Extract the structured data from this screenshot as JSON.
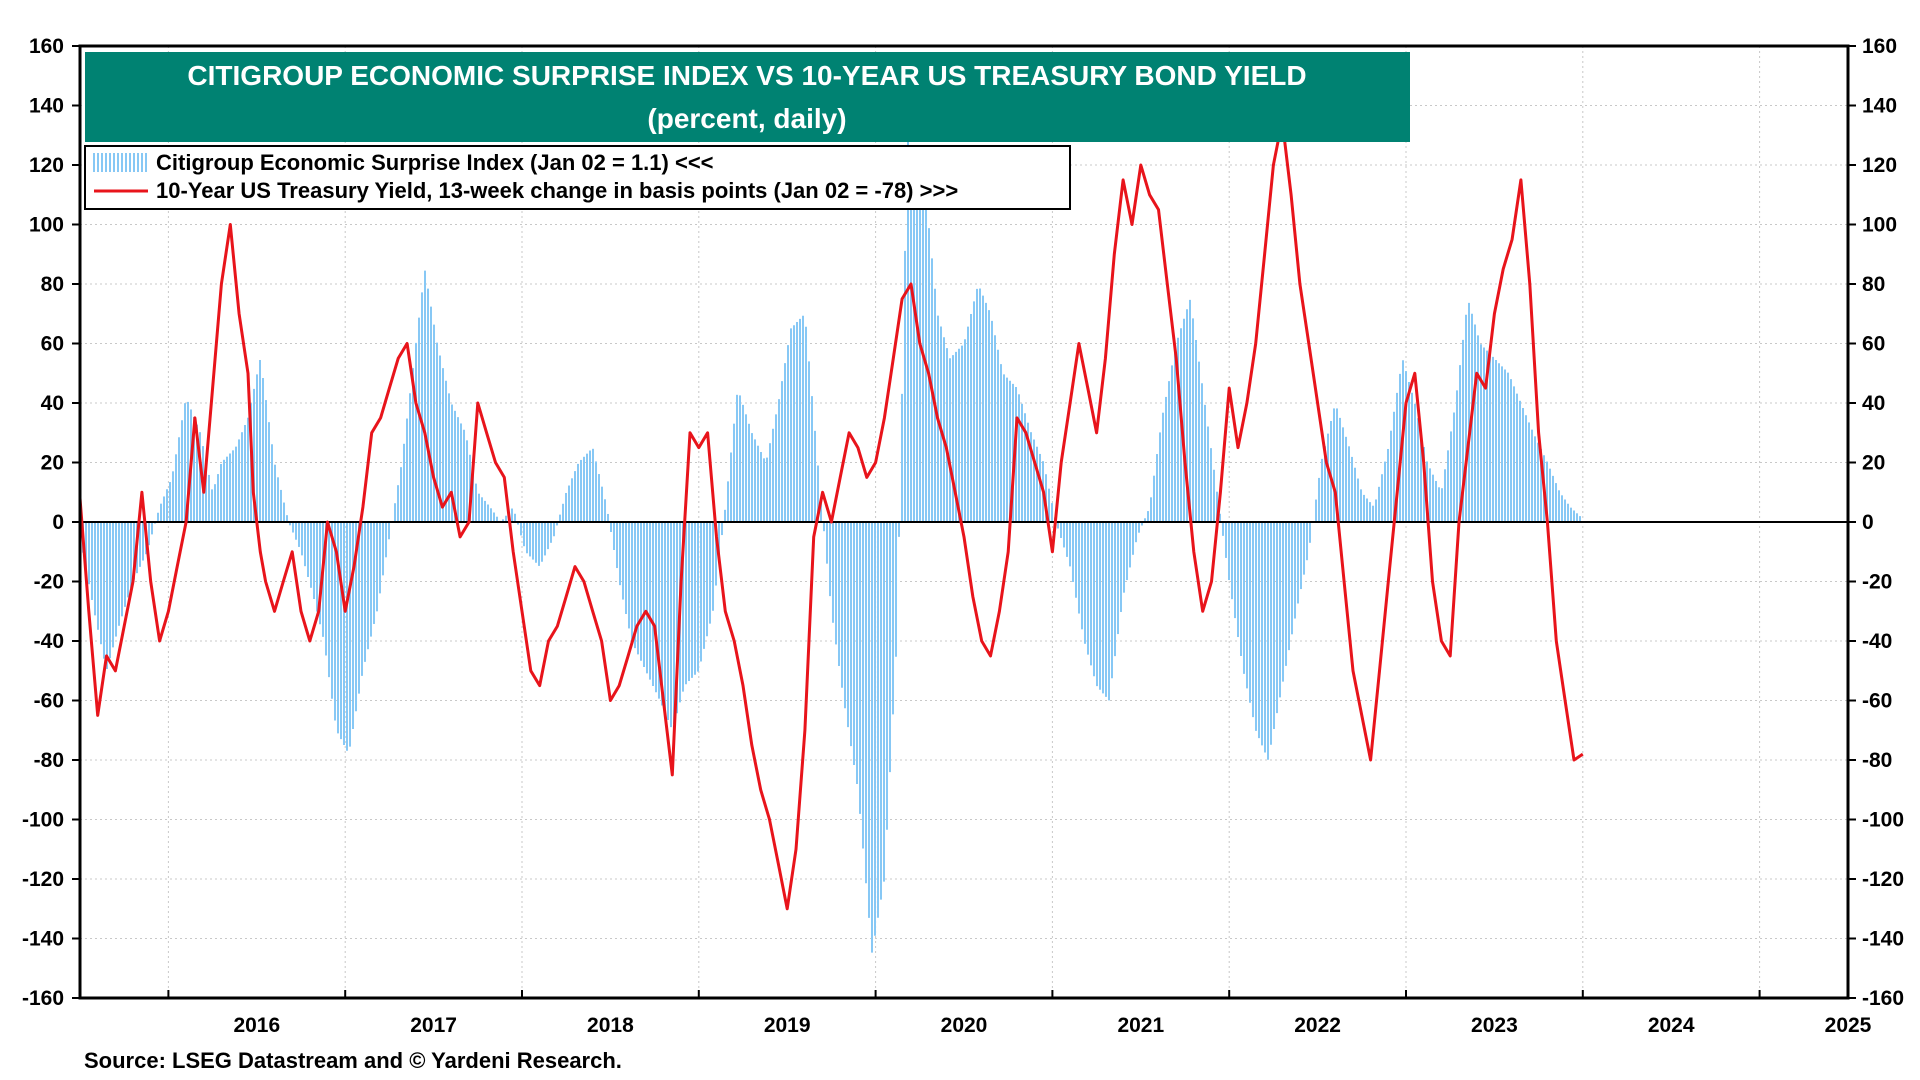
{
  "colors": {
    "title_bg": "#008272",
    "title_text": "#ffffff",
    "surprise_fill": "#87c8f5",
    "yield_line": "#e8141b",
    "grid": "#c8c8c8",
    "axis": "#000000"
  },
  "source": "Source: LSEG Datastream and © Yardeni Research.",
  "chart_data": {
    "type": "bar+line",
    "title": "CITIGROUP ECONOMIC SURPRISE INDEX VS 10-YEAR US TREASURY BOND YIELD",
    "subtitle": "(percent, daily)",
    "ylim": [
      -160,
      160
    ],
    "y_ticks": [
      160,
      140,
      120,
      100,
      80,
      60,
      40,
      20,
      0,
      -20,
      -40,
      -60,
      -80,
      -100,
      -120,
      -140,
      -160
    ],
    "y_tick_labels": [
      "160",
      "140",
      "120",
      "100",
      "80",
      "60",
      "40",
      "20",
      "0",
      "-20",
      "-40",
      "-60",
      "-80",
      "-100",
      "-120",
      "-140",
      "-160"
    ],
    "x_range": [
      2015.5,
      2025.5
    ],
    "x_labels": [
      "2016",
      "2017",
      "2018",
      "2019",
      "2020",
      "2021",
      "2022",
      "2023",
      "2024",
      "2025"
    ],
    "grid": true,
    "legend_position": "top-left",
    "legend": [
      {
        "label": "Citigroup Economic Surprise Index (Jan 02 = 1.1) <<<",
        "style": "bars"
      },
      {
        "label": "10-Year US Treasury Yield, 13-week change in basis points (Jan 02 = -78) >>>",
        "style": "line"
      }
    ],
    "series": [
      {
        "name": "Citigroup Economic Surprise Index",
        "type": "bar",
        "axis": "left",
        "x": [
          2015.5,
          2015.58,
          2015.65,
          2015.72,
          2015.8,
          2015.88,
          2015.95,
          2016.02,
          2016.1,
          2016.18,
          2016.25,
          2016.3,
          2016.38,
          2016.45,
          2016.52,
          2016.6,
          2016.68,
          2016.75,
          2016.82,
          2016.88,
          2016.95,
          2017.02,
          2017.1,
          2017.18,
          2017.25,
          2017.32,
          2017.38,
          2017.45,
          2017.52,
          2017.6,
          2017.68,
          2017.75,
          2017.82,
          2017.88,
          2017.95,
          2018.02,
          2018.1,
          2018.18,
          2018.25,
          2018.32,
          2018.4,
          2018.48,
          2018.55,
          2018.62,
          2018.7,
          2018.78,
          2018.85,
          2018.92,
          2019.0,
          2019.08,
          2019.15,
          2019.22,
          2019.3,
          2019.38,
          2019.45,
          2019.52,
          2019.6,
          2019.68,
          2019.75,
          2019.82,
          2019.9,
          2019.98,
          2020.05,
          2020.12,
          2020.18,
          2020.22,
          2020.27,
          2020.3,
          2020.35,
          2020.42,
          2020.5,
          2020.58,
          2020.65,
          2020.72,
          2020.8,
          2020.88,
          2020.95,
          2021.02,
          2021.1,
          2021.18,
          2021.25,
          2021.32,
          2021.4,
          2021.48,
          2021.55,
          2021.62,
          2021.7,
          2021.78,
          2021.85,
          2021.92,
          2022.0,
          2022.08,
          2022.15,
          2022.22,
          2022.3,
          2022.38,
          2022.45,
          2022.52,
          2022.6,
          2022.68,
          2022.75,
          2022.82,
          2022.9,
          2022.98,
          2023.05,
          2023.12,
          2023.2,
          2023.28,
          2023.35,
          2023.42,
          2023.5,
          2023.58,
          2023.65,
          2023.72,
          2023.8,
          2023.87,
          2023.93,
          2024.0
        ],
        "values": [
          -5,
          -30,
          -50,
          -35,
          -20,
          -10,
          5,
          15,
          42,
          30,
          10,
          20,
          25,
          35,
          55,
          20,
          0,
          -10,
          -25,
          -40,
          -70,
          -78,
          -50,
          -30,
          -5,
          20,
          50,
          85,
          60,
          40,
          30,
          10,
          5,
          0,
          5,
          -10,
          -15,
          -5,
          10,
          20,
          25,
          5,
          -20,
          -40,
          -50,
          -60,
          -70,
          -55,
          -50,
          -30,
          5,
          45,
          30,
          20,
          40,
          65,
          70,
          15,
          -30,
          -60,
          -90,
          -145,
          -120,
          -40,
          130,
          120,
          125,
          100,
          70,
          55,
          60,
          80,
          70,
          50,
          45,
          30,
          20,
          0,
          -15,
          -40,
          -55,
          -60,
          -25,
          -5,
          5,
          35,
          60,
          75,
          45,
          15,
          -20,
          -50,
          -70,
          -80,
          -55,
          -30,
          -10,
          20,
          40,
          25,
          10,
          5,
          25,
          55,
          40,
          20,
          10,
          40,
          75,
          60,
          55,
          50,
          40,
          30,
          20,
          10,
          5,
          1.1
        ]
      },
      {
        "name": "10-Year US Treasury Yield, 13-week change in basis points",
        "type": "line",
        "axis": "right",
        "x": [
          2015.5,
          2015.55,
          2015.6,
          2015.65,
          2015.7,
          2015.75,
          2015.8,
          2015.85,
          2015.9,
          2015.95,
          2016.0,
          2016.05,
          2016.1,
          2016.15,
          2016.2,
          2016.25,
          2016.3,
          2016.35,
          2016.4,
          2016.45,
          2016.48,
          2016.52,
          2016.55,
          2016.6,
          2016.65,
          2016.7,
          2016.75,
          2016.8,
          2016.85,
          2016.9,
          2016.95,
          2017.0,
          2017.05,
          2017.1,
          2017.15,
          2017.2,
          2017.25,
          2017.3,
          2017.35,
          2017.4,
          2017.45,
          2017.5,
          2017.55,
          2017.6,
          2017.65,
          2017.7,
          2017.75,
          2017.8,
          2017.85,
          2017.9,
          2017.95,
          2018.0,
          2018.05,
          2018.1,
          2018.15,
          2018.2,
          2018.25,
          2018.3,
          2018.35,
          2018.4,
          2018.45,
          2018.5,
          2018.55,
          2018.6,
          2018.65,
          2018.7,
          2018.75,
          2018.8,
          2018.85,
          2018.9,
          2018.95,
          2019.0,
          2019.05,
          2019.1,
          2019.15,
          2019.2,
          2019.25,
          2019.3,
          2019.35,
          2019.4,
          2019.45,
          2019.5,
          2019.55,
          2019.6,
          2019.65,
          2019.7,
          2019.75,
          2019.8,
          2019.85,
          2019.9,
          2019.95,
          2020.0,
          2020.05,
          2020.1,
          2020.15,
          2020.2,
          2020.25,
          2020.3,
          2020.35,
          2020.4,
          2020.45,
          2020.5,
          2020.55,
          2020.6,
          2020.65,
          2020.7,
          2020.75,
          2020.8,
          2020.85,
          2020.9,
          2020.95,
          2021.0,
          2021.05,
          2021.1,
          2021.15,
          2021.2,
          2021.25,
          2021.3,
          2021.35,
          2021.4,
          2021.45,
          2021.5,
          2021.55,
          2021.6,
          2021.65,
          2021.7,
          2021.75,
          2021.8,
          2021.85,
          2021.9,
          2021.95,
          2022.0,
          2022.05,
          2022.1,
          2022.15,
          2022.2,
          2022.25,
          2022.3,
          2022.35,
          2022.4,
          2022.45,
          2022.5,
          2022.55,
          2022.6,
          2022.65,
          2022.7,
          2022.75,
          2022.8,
          2022.85,
          2022.9,
          2022.95,
          2023.0,
          2023.05,
          2023.1,
          2023.15,
          2023.2,
          2023.25,
          2023.3,
          2023.35,
          2023.4,
          2023.45,
          2023.5,
          2023.55,
          2023.6,
          2023.65,
          2023.7,
          2023.75,
          2023.8,
          2023.85,
          2023.9,
          2023.95,
          2024.0
        ],
        "values": [
          8,
          -30,
          -65,
          -45,
          -50,
          -35,
          -20,
          10,
          -20,
          -40,
          -30,
          -15,
          0,
          35,
          10,
          45,
          80,
          100,
          70,
          50,
          10,
          -10,
          -20,
          -30,
          -20,
          -10,
          -30,
          -40,
          -30,
          0,
          -10,
          -30,
          -15,
          5,
          30,
          35,
          45,
          55,
          60,
          40,
          30,
          15,
          5,
          10,
          -5,
          0,
          40,
          30,
          20,
          15,
          -10,
          -30,
          -50,
          -55,
          -40,
          -35,
          -25,
          -15,
          -20,
          -30,
          -40,
          -60,
          -55,
          -45,
          -35,
          -30,
          -35,
          -60,
          -85,
          -20,
          30,
          25,
          30,
          -5,
          -30,
          -40,
          -55,
          -75,
          -90,
          -100,
          -115,
          -130,
          -110,
          -70,
          -5,
          10,
          0,
          15,
          30,
          25,
          15,
          20,
          35,
          55,
          75,
          80,
          60,
          50,
          35,
          25,
          10,
          -5,
          -25,
          -40,
          -45,
          -30,
          -10,
          35,
          30,
          20,
          10,
          -10,
          20,
          40,
          60,
          45,
          30,
          55,
          90,
          115,
          100,
          120,
          110,
          105,
          80,
          55,
          20,
          -10,
          -30,
          -20,
          10,
          45,
          25,
          40,
          60,
          90,
          120,
          135,
          110,
          80,
          60,
          40,
          20,
          10,
          -20,
          -50,
          -65,
          -80,
          -50,
          -20,
          10,
          40,
          50,
          20,
          -20,
          -40,
          -45,
          0,
          25,
          50,
          45,
          70,
          85,
          95,
          115,
          80,
          30,
          0,
          -40,
          -60,
          -80,
          -78
        ]
      }
    ]
  }
}
